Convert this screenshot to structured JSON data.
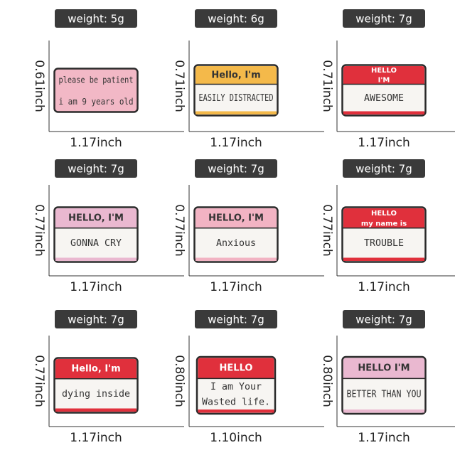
{
  "items": [
    {
      "weight": "weight: 5g",
      "height": {
        "value": 0.61,
        "label": "0.61inch"
      },
      "width": {
        "value": 1.17,
        "label": "1.17inch"
      },
      "color": "#f2b8c6",
      "body": [
        "please be patient",
        "i am 9 years old"
      ]
    },
    {
      "weight": "weight: 6g",
      "height": {
        "value": 0.71,
        "label": "0.71inch"
      },
      "width": {
        "value": 1.17,
        "label": "1.17inch"
      },
      "color": "#f7f5f2",
      "header_color": "#f4b94a",
      "header": [
        "Hello, I'm"
      ],
      "body": [
        "EASILY DISTRACTED"
      ]
    },
    {
      "weight": "weight: 7g",
      "height": {
        "value": 0.71,
        "label": "0.71inch"
      },
      "width": {
        "value": 1.17,
        "label": "1.17inch"
      },
      "color": "#f7f5f2",
      "header_color": "#e0303c",
      "header": [
        "HELLO",
        "I'M"
      ],
      "body": [
        "AWESOME"
      ]
    },
    {
      "weight": "weight: 7g",
      "height": {
        "value": 0.77,
        "label": "0.77inch"
      },
      "width": {
        "value": 1.17,
        "label": "1.17inch"
      },
      "color": "#f7f5f2",
      "header_color": "#eab8d0",
      "header": [
        "HELLO, I'M"
      ],
      "body": [
        "GONNA CRY"
      ]
    },
    {
      "weight": "weight: 7g",
      "height": {
        "value": 0.77,
        "label": "0.77inch"
      },
      "width": {
        "value": 1.17,
        "label": "1.17inch"
      },
      "color": "#f7f5f2",
      "header_color": "#f2b3c3",
      "header": [
        "HELLO, I'M"
      ],
      "body": [
        "Anxious"
      ]
    },
    {
      "weight": "weight: 7g",
      "height": {
        "value": 0.77,
        "label": "0.77inch"
      },
      "width": {
        "value": 1.17,
        "label": "1.17inch"
      },
      "color": "#f7f5f2",
      "header_color": "#e0303c",
      "header": [
        "HELLO",
        "my name is"
      ],
      "body": [
        "TROUBLE"
      ]
    },
    {
      "weight": "weight: 7g",
      "height": {
        "value": 0.77,
        "label": "0.77inch"
      },
      "width": {
        "value": 1.17,
        "label": "1.17inch"
      },
      "color": "#f7f5f2",
      "header_color": "#e0303c",
      "header": [
        "Hello, I'm"
      ],
      "body": [
        "dying inside"
      ]
    },
    {
      "weight": "weight: 7g",
      "height": {
        "value": 0.8,
        "label": "0.80inch"
      },
      "width": {
        "value": 1.1,
        "label": "1.10inch"
      },
      "color": "#f7f5f2",
      "header_color": "#e0303c",
      "header": [
        "HELLO"
      ],
      "body": [
        "I am Your",
        "Wasted life."
      ]
    },
    {
      "weight": "weight: 7g",
      "height": {
        "value": 0.8,
        "label": "0.80inch"
      },
      "width": {
        "value": 1.17,
        "label": "1.17inch"
      },
      "color": "#f7f5f2",
      "header_color": "#eab8d0",
      "header": [
        "HELLO I'M"
      ],
      "body": [
        "BETTER THAN YOU"
      ]
    }
  ]
}
